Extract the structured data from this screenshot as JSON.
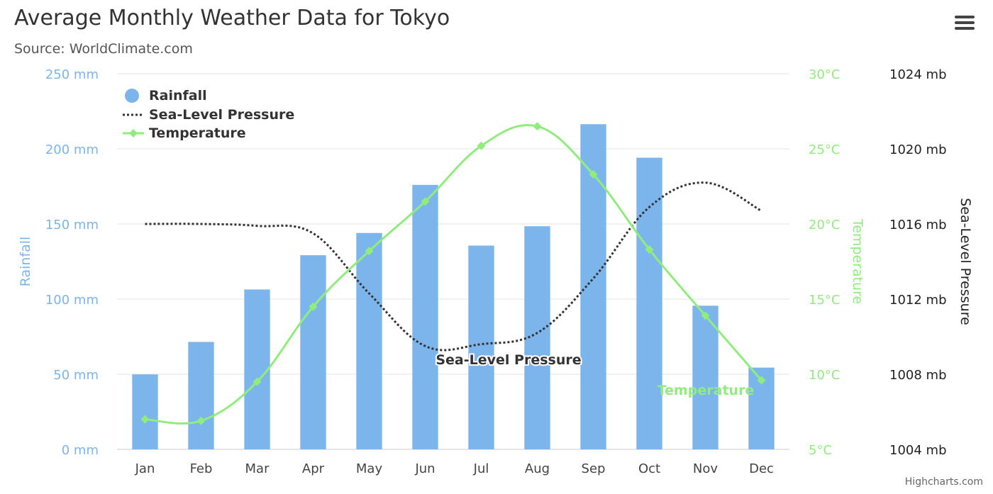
{
  "title": "Average Monthly Weather Data for Tokyo",
  "subtitle": "Source: WorldClimate.com",
  "credits": "Highcharts.com",
  "menu_icon": "hamburger-menu-icon",
  "colors": {
    "rainfall": "#7cb5ec",
    "temperature": "#90ed7d",
    "pressure": "#333333",
    "rainfall_axis": "#7cb5ec",
    "temperature_axis": "#90ed7d",
    "pressure_axis": "#333333",
    "grid": "#e6e6e6"
  },
  "chart_data": {
    "type": "bar",
    "categories": [
      "Jan",
      "Feb",
      "Mar",
      "Apr",
      "May",
      "Jun",
      "Jul",
      "Aug",
      "Sep",
      "Oct",
      "Nov",
      "Dec"
    ],
    "series": [
      {
        "name": "Rainfall",
        "type": "bar",
        "axis": "rainfall",
        "values": [
          49.9,
          71.5,
          106.4,
          129.2,
          144.0,
          176.0,
          135.6,
          148.5,
          216.4,
          194.1,
          95.6,
          54.4
        ]
      },
      {
        "name": "Sea-Level Pressure",
        "type": "line",
        "style": "dotted",
        "axis": "pressure",
        "values": [
          1016,
          1016,
          1015.9,
          1015.5,
          1012.3,
          1009.5,
          1009.6,
          1010.2,
          1013.1,
          1016.9,
          1018.2,
          1016.7
        ]
      },
      {
        "name": "Temperature",
        "type": "line",
        "marker": "diamond",
        "axis": "temperature",
        "values": [
          7.0,
          6.9,
          9.5,
          14.5,
          18.2,
          21.5,
          25.2,
          26.5,
          23.3,
          18.3,
          13.9,
          9.6
        ]
      }
    ],
    "axes": {
      "rainfall": {
        "label": "Rainfall",
        "position": "left",
        "range": [
          0,
          250
        ],
        "ticks": [
          "0 mm",
          "50 mm",
          "100 mm",
          "150 mm",
          "200 mm",
          "250 mm"
        ]
      },
      "temperature": {
        "label": "Temperature",
        "position": "right",
        "range": [
          5,
          30
        ],
        "ticks": [
          "5°C",
          "10°C",
          "15°C",
          "20°C",
          "25°C",
          "30°C"
        ]
      },
      "pressure": {
        "label": "Sea-Level Pressure",
        "position": "far-right",
        "range": [
          1004,
          1024
        ],
        "ticks": [
          "1004 mb",
          "1008 mb",
          "1012 mb",
          "1016 mb",
          "1020 mb",
          "1024 mb"
        ]
      }
    },
    "series_labels": [
      "Sea-Level Pressure",
      "Temperature"
    ],
    "grid": true,
    "legend_placement": "top-left"
  }
}
